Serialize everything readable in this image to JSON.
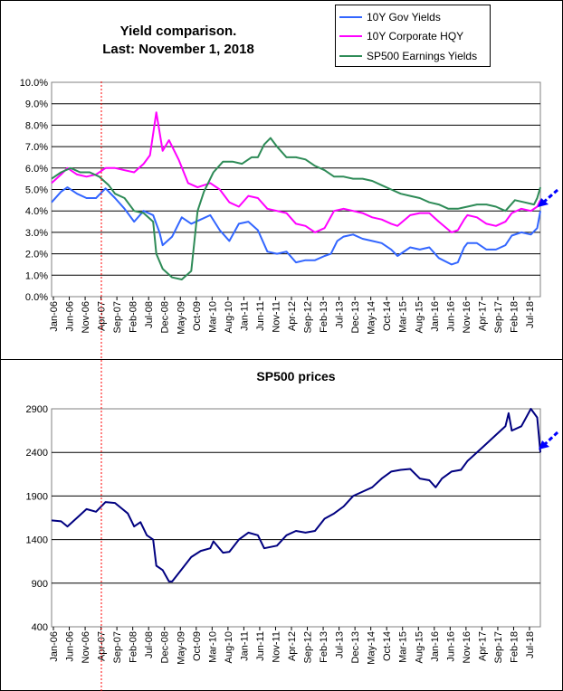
{
  "chart_data": [
    {
      "type": "line",
      "title": "Yield comparison.",
      "subtitle": "Last: November 1, 2018",
      "legend_position": "top-right",
      "grid": true,
      "ylim": [
        0,
        10
      ],
      "y_ticks": [
        "0.0%",
        "1.0%",
        "2.0%",
        "3.0%",
        "4.0%",
        "5.0%",
        "6.0%",
        "7.0%",
        "8.0%",
        "9.0%",
        "10.0%"
      ],
      "x_ticks": [
        "Jan-06",
        "Jun-06",
        "Nov-06",
        "Apr-07",
        "Sep-07",
        "Feb-08",
        "Jul-08",
        "Dec-08",
        "May-09",
        "Oct-09",
        "Mar-10",
        "Aug-10",
        "Jan-11",
        "Jun-11",
        "Nov-11",
        "Apr-12",
        "Sep-12",
        "Feb-13",
        "Jul-13",
        "Dec-13",
        "May-14",
        "Oct-14",
        "Mar-15",
        "Aug-15",
        "Jan-16",
        "Jun-16",
        "Nov-16",
        "Apr-17",
        "Sep-17",
        "Feb-18",
        "Jul-18"
      ],
      "x_range": [
        "2006-01",
        "2018-11"
      ],
      "series": [
        {
          "name": "10Y Gov Yields",
          "color": "#3366ff",
          "points": [
            [
              "2006-01",
              4.4
            ],
            [
              "2006-04",
              4.9
            ],
            [
              "2006-06",
              5.1
            ],
            [
              "2006-09",
              4.8
            ],
            [
              "2006-12",
              4.6
            ],
            [
              "2007-03",
              4.6
            ],
            [
              "2007-06",
              5.05
            ],
            [
              "2007-09",
              4.6
            ],
            [
              "2007-12",
              4.1
            ],
            [
              "2008-03",
              3.5
            ],
            [
              "2008-06",
              4.0
            ],
            [
              "2008-09",
              3.8
            ],
            [
              "2008-11",
              3.0
            ],
            [
              "2008-12",
              2.4
            ],
            [
              "2009-03",
              2.8
            ],
            [
              "2009-06",
              3.7
            ],
            [
              "2009-09",
              3.4
            ],
            [
              "2009-12",
              3.6
            ],
            [
              "2010-03",
              3.8
            ],
            [
              "2010-06",
              3.1
            ],
            [
              "2010-09",
              2.6
            ],
            [
              "2010-12",
              3.4
            ],
            [
              "2011-03",
              3.5
            ],
            [
              "2011-06",
              3.1
            ],
            [
              "2011-09",
              2.1
            ],
            [
              "2011-12",
              2.0
            ],
            [
              "2012-03",
              2.1
            ],
            [
              "2012-06",
              1.6
            ],
            [
              "2012-09",
              1.7
            ],
            [
              "2012-12",
              1.7
            ],
            [
              "2013-03",
              1.9
            ],
            [
              "2013-05",
              2.0
            ],
            [
              "2013-07",
              2.6
            ],
            [
              "2013-09",
              2.8
            ],
            [
              "2013-12",
              2.9
            ],
            [
              "2014-03",
              2.7
            ],
            [
              "2014-06",
              2.6
            ],
            [
              "2014-09",
              2.5
            ],
            [
              "2014-12",
              2.2
            ],
            [
              "2015-02",
              1.9
            ],
            [
              "2015-06",
              2.3
            ],
            [
              "2015-09",
              2.2
            ],
            [
              "2015-12",
              2.3
            ],
            [
              "2016-03",
              1.8
            ],
            [
              "2016-07",
              1.5
            ],
            [
              "2016-09",
              1.6
            ],
            [
              "2016-11",
              2.3
            ],
            [
              "2016-12",
              2.5
            ],
            [
              "2017-03",
              2.5
            ],
            [
              "2017-06",
              2.2
            ],
            [
              "2017-09",
              2.2
            ],
            [
              "2017-12",
              2.4
            ],
            [
              "2018-02",
              2.85
            ],
            [
              "2018-05",
              3.0
            ],
            [
              "2018-08",
              2.9
            ],
            [
              "2018-10",
              3.2
            ],
            [
              "2018-11",
              4.0
            ]
          ]
        },
        {
          "name": "10Y Corporate HQY",
          "color": "#ff00ff",
          "points": [
            [
              "2006-01",
              5.3
            ],
            [
              "2006-04",
              5.7
            ],
            [
              "2006-06",
              6.0
            ],
            [
              "2006-09",
              5.7
            ],
            [
              "2006-12",
              5.6
            ],
            [
              "2007-03",
              5.7
            ],
            [
              "2007-06",
              6.0
            ],
            [
              "2007-09",
              6.0
            ],
            [
              "2007-12",
              5.9
            ],
            [
              "2008-03",
              5.8
            ],
            [
              "2008-06",
              6.2
            ],
            [
              "2008-08",
              6.6
            ],
            [
              "2008-10",
              8.6
            ],
            [
              "2008-12",
              6.8
            ],
            [
              "2009-02",
              7.3
            ],
            [
              "2009-05",
              6.4
            ],
            [
              "2009-08",
              5.3
            ],
            [
              "2009-11",
              5.1
            ],
            [
              "2010-03",
              5.3
            ],
            [
              "2010-06",
              5.0
            ],
            [
              "2010-09",
              4.4
            ],
            [
              "2010-12",
              4.2
            ],
            [
              "2011-03",
              4.7
            ],
            [
              "2011-06",
              4.6
            ],
            [
              "2011-09",
              4.1
            ],
            [
              "2011-12",
              4.0
            ],
            [
              "2012-03",
              3.9
            ],
            [
              "2012-06",
              3.4
            ],
            [
              "2012-09",
              3.3
            ],
            [
              "2012-12",
              3.0
            ],
            [
              "2013-03",
              3.2
            ],
            [
              "2013-06",
              4.0
            ],
            [
              "2013-09",
              4.1
            ],
            [
              "2013-12",
              4.0
            ],
            [
              "2014-03",
              3.9
            ],
            [
              "2014-06",
              3.7
            ],
            [
              "2014-09",
              3.6
            ],
            [
              "2014-12",
              3.4
            ],
            [
              "2015-02",
              3.3
            ],
            [
              "2015-06",
              3.8
            ],
            [
              "2015-09",
              3.9
            ],
            [
              "2015-12",
              3.9
            ],
            [
              "2016-03",
              3.5
            ],
            [
              "2016-07",
              3.0
            ],
            [
              "2016-09",
              3.1
            ],
            [
              "2016-11",
              3.6
            ],
            [
              "2016-12",
              3.8
            ],
            [
              "2017-03",
              3.7
            ],
            [
              "2017-06",
              3.4
            ],
            [
              "2017-09",
              3.3
            ],
            [
              "2017-12",
              3.5
            ],
            [
              "2018-02",
              3.9
            ],
            [
              "2018-05",
              4.1
            ],
            [
              "2018-08",
              4.0
            ],
            [
              "2018-10",
              4.2
            ],
            [
              "2018-11",
              4.5
            ]
          ]
        },
        {
          "name": "SP500 Earnings Yields",
          "color": "#2e8b57",
          "points": [
            [
              "2006-01",
              5.5
            ],
            [
              "2006-04",
              5.8
            ],
            [
              "2006-07",
              6.0
            ],
            [
              "2006-10",
              5.8
            ],
            [
              "2007-01",
              5.8
            ],
            [
              "2007-04",
              5.6
            ],
            [
              "2007-07",
              5.2
            ],
            [
              "2007-09",
              4.8
            ],
            [
              "2007-12",
              4.6
            ],
            [
              "2008-03",
              4.0
            ],
            [
              "2008-06",
              3.9
            ],
            [
              "2008-09",
              3.5
            ],
            [
              "2008-10",
              2.0
            ],
            [
              "2008-12",
              1.3
            ],
            [
              "2009-03",
              0.9
            ],
            [
              "2009-06",
              0.8
            ],
            [
              "2009-09",
              1.2
            ],
            [
              "2009-11",
              4.0
            ],
            [
              "2010-01",
              4.9
            ],
            [
              "2010-04",
              5.8
            ],
            [
              "2010-07",
              6.3
            ],
            [
              "2010-10",
              6.3
            ],
            [
              "2011-01",
              6.2
            ],
            [
              "2011-04",
              6.5
            ],
            [
              "2011-06",
              6.5
            ],
            [
              "2011-08",
              7.1
            ],
            [
              "2011-10",
              7.4
            ],
            [
              "2011-12",
              7.0
            ],
            [
              "2012-03",
              6.5
            ],
            [
              "2012-06",
              6.5
            ],
            [
              "2012-09",
              6.4
            ],
            [
              "2012-12",
              6.1
            ],
            [
              "2013-03",
              5.9
            ],
            [
              "2013-06",
              5.6
            ],
            [
              "2013-09",
              5.6
            ],
            [
              "2013-12",
              5.5
            ],
            [
              "2014-03",
              5.5
            ],
            [
              "2014-06",
              5.4
            ],
            [
              "2014-09",
              5.2
            ],
            [
              "2014-12",
              5.0
            ],
            [
              "2015-03",
              4.8
            ],
            [
              "2015-06",
              4.7
            ],
            [
              "2015-09",
              4.6
            ],
            [
              "2015-12",
              4.4
            ],
            [
              "2016-03",
              4.3
            ],
            [
              "2016-06",
              4.1
            ],
            [
              "2016-09",
              4.1
            ],
            [
              "2016-12",
              4.2
            ],
            [
              "2017-03",
              4.3
            ],
            [
              "2017-06",
              4.3
            ],
            [
              "2017-09",
              4.2
            ],
            [
              "2017-12",
              4.0
            ],
            [
              "2018-03",
              4.5
            ],
            [
              "2018-06",
              4.4
            ],
            [
              "2018-09",
              4.3
            ],
            [
              "2018-10",
              4.6
            ],
            [
              "2018-11",
              5.1
            ]
          ]
        }
      ]
    },
    {
      "type": "line",
      "title": "SP500 prices",
      "grid": true,
      "ylim": [
        400,
        2900
      ],
      "y_ticks": [
        "400",
        "900",
        "1400",
        "1900",
        "2400",
        "2900"
      ],
      "x_ticks": [
        "Jan-06",
        "Jun-06",
        "Nov-06",
        "Apr-07",
        "Sep-07",
        "Feb-08",
        "Jul-08",
        "Dec-08",
        "May-09",
        "Oct-09",
        "Mar-10",
        "Aug-10",
        "Jan-11",
        "Jun-11",
        "Nov-11",
        "Apr-12",
        "Sep-12",
        "Feb-13",
        "Jul-13",
        "Dec-13",
        "May-14",
        "Oct-14",
        "Mar-15",
        "Aug-15",
        "Jan-16",
        "Jun-16",
        "Nov-16",
        "Apr-17",
        "Sep-17",
        "Feb-18",
        "Jul-18"
      ],
      "x_range": [
        "2006-01",
        "2018-11"
      ],
      "series": [
        {
          "color": "#000080",
          "points": [
            [
              "2006-01",
              1620
            ],
            [
              "2006-04",
              1610
            ],
            [
              "2006-06",
              1550
            ],
            [
              "2006-09",
              1650
            ],
            [
              "2006-12",
              1750
            ],
            [
              "2007-03",
              1720
            ],
            [
              "2007-06",
              1830
            ],
            [
              "2007-09",
              1820
            ],
            [
              "2007-11",
              1760
            ],
            [
              "2008-01",
              1700
            ],
            [
              "2008-03",
              1550
            ],
            [
              "2008-05",
              1600
            ],
            [
              "2008-07",
              1450
            ],
            [
              "2008-09",
              1400
            ],
            [
              "2008-10",
              1100
            ],
            [
              "2008-12",
              1050
            ],
            [
              "2009-02",
              920
            ],
            [
              "2009-03",
              920
            ],
            [
              "2009-06",
              1060
            ],
            [
              "2009-09",
              1200
            ],
            [
              "2009-12",
              1270
            ],
            [
              "2010-03",
              1300
            ],
            [
              "2010-04",
              1380
            ],
            [
              "2010-07",
              1250
            ],
            [
              "2010-09",
              1260
            ],
            [
              "2010-12",
              1400
            ],
            [
              "2011-03",
              1480
            ],
            [
              "2011-06",
              1450
            ],
            [
              "2011-08",
              1300
            ],
            [
              "2011-12",
              1330
            ],
            [
              "2012-03",
              1450
            ],
            [
              "2012-06",
              1500
            ],
            [
              "2012-09",
              1480
            ],
            [
              "2012-12",
              1500
            ],
            [
              "2013-03",
              1640
            ],
            [
              "2013-06",
              1700
            ],
            [
              "2013-09",
              1780
            ],
            [
              "2013-12",
              1900
            ],
            [
              "2014-03",
              1950
            ],
            [
              "2014-06",
              2000
            ],
            [
              "2014-09",
              2100
            ],
            [
              "2014-12",
              2180
            ],
            [
              "2015-03",
              2200
            ],
            [
              "2015-06",
              2210
            ],
            [
              "2015-09",
              2100
            ],
            [
              "2015-12",
              2080
            ],
            [
              "2016-02",
              2000
            ],
            [
              "2016-04",
              2100
            ],
            [
              "2016-07",
              2180
            ],
            [
              "2016-10",
              2200
            ],
            [
              "2016-12",
              2300
            ],
            [
              "2017-03",
              2400
            ],
            [
              "2017-06",
              2500
            ],
            [
              "2017-09",
              2600
            ],
            [
              "2017-12",
              2700
            ],
            [
              "2018-01",
              2850
            ],
            [
              "2018-02",
              2650
            ],
            [
              "2018-05",
              2700
            ],
            [
              "2018-08",
              2900
            ],
            [
              "2018-10",
              2800
            ],
            [
              "2018-11",
              2400
            ]
          ]
        }
      ]
    }
  ]
}
